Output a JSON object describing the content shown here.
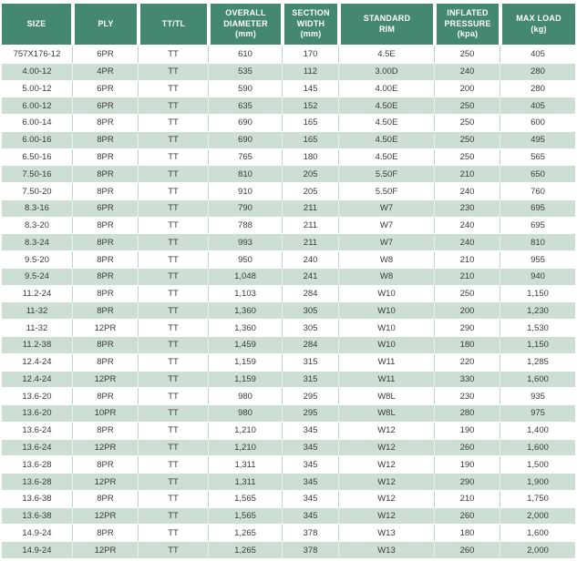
{
  "colors": {
    "header_bg": "#44886f",
    "header_text": "#ffffff",
    "row_white_bg": "#ffffff",
    "row_alt_bg": "#cddfd5",
    "divider_green": "#b9d6c9",
    "body_text": "#3a3a3a"
  },
  "table": {
    "column_keys": [
      "size",
      "ply",
      "tt_tl",
      "overall_diameter",
      "section_width",
      "standard_rim",
      "inflated_pressure",
      "max_load"
    ],
    "columns": [
      {
        "label": "SIZE"
      },
      {
        "label": "PLY"
      },
      {
        "label": "TT/TL"
      },
      {
        "label": "OVERALL\nDIAMETER\n(mm)"
      },
      {
        "label": "SECTION\nWIDTH\n(mm)"
      },
      {
        "label": "STANDARD\nRIM"
      },
      {
        "label": "INFLATED\nPRESSURE\n(kpa)"
      },
      {
        "label": "MAX LOAD\n(kg)"
      }
    ],
    "rows": [
      [
        "757X176-12",
        "6PR",
        "TT",
        "610",
        "170",
        "4.5E",
        "250",
        "405"
      ],
      [
        "4.00-12",
        "4PR",
        "TT",
        "535",
        "112",
        "3.00D",
        "240",
        "280"
      ],
      [
        "5.00-12",
        "6PR",
        "TT",
        "590",
        "145",
        "4.00E",
        "200",
        "280"
      ],
      [
        "6.00-12",
        "6PR",
        "TT",
        "635",
        "152",
        "4.50E",
        "250",
        "405"
      ],
      [
        "6.00-14",
        "8PR",
        "TT",
        "690",
        "165",
        "4.50E",
        "250",
        "600"
      ],
      [
        "6.00-16",
        "8PR",
        "TT",
        "690",
        "165",
        "4.50E",
        "250",
        "495"
      ],
      [
        "6.50-16",
        "8PR",
        "TT",
        "765",
        "180",
        "4.50E",
        "250",
        "565"
      ],
      [
        "7.50-16",
        "8PR",
        "TT",
        "810",
        "205",
        "5.50F",
        "210",
        "650"
      ],
      [
        "7.50-20",
        "8PR",
        "TT",
        "910",
        "205",
        "5.50F",
        "240",
        "760"
      ],
      [
        "8.3-16",
        "6PR",
        "TT",
        "790",
        "211",
        "W7",
        "230",
        "695"
      ],
      [
        "8.3-20",
        "8PR",
        "TT",
        "788",
        "211",
        "W7",
        "240",
        "695"
      ],
      [
        "8.3-24",
        "8PR",
        "TT",
        "993",
        "211",
        "W7",
        "240",
        "810"
      ],
      [
        "9.5-20",
        "8PR",
        "TT",
        "950",
        "240",
        "W8",
        "210",
        "955"
      ],
      [
        "9.5-24",
        "8PR",
        "TT",
        "1,048",
        "241",
        "W8",
        "210",
        "940"
      ],
      [
        "11.2-24",
        "8PR",
        "TT",
        "1,103",
        "284",
        "W10",
        "250",
        "1,150"
      ],
      [
        "11-32",
        "8PR",
        "TT",
        "1,360",
        "305",
        "W10",
        "200",
        "1,230"
      ],
      [
        "11-32",
        "12PR",
        "TT",
        "1,360",
        "305",
        "W10",
        "290",
        "1,530"
      ],
      [
        "11.2-38",
        "8PR",
        "TT",
        "1,459",
        "284",
        "W10",
        "180",
        "1,150"
      ],
      [
        "12.4-24",
        "8PR",
        "TT",
        "1,159",
        "315",
        "W11",
        "220",
        "1,285"
      ],
      [
        "12.4-24",
        "12PR",
        "TT",
        "1,159",
        "315",
        "W11",
        "330",
        "1,600"
      ],
      [
        "13.6-20",
        "8PR",
        "TT",
        "980",
        "295",
        "W8L",
        "230",
        "935"
      ],
      [
        "13.6-20",
        "10PR",
        "TT",
        "980",
        "295",
        "W8L",
        "280",
        "975"
      ],
      [
        "13.6-24",
        "8PR",
        "TT",
        "1,210",
        "345",
        "W12",
        "190",
        "1,400"
      ],
      [
        "13.6-24",
        "12PR",
        "TT",
        "1,210",
        "345",
        "W12",
        "260",
        "1,600"
      ],
      [
        "13.6-28",
        "8PR",
        "TT",
        "1,311",
        "345",
        "W12",
        "190",
        "1,500"
      ],
      [
        "13.6-28",
        "12PR",
        "TT",
        "1,311",
        "345",
        "W12",
        "290",
        "1,900"
      ],
      [
        "13.6-38",
        "8PR",
        "TT",
        "1,565",
        "345",
        "W12",
        "210",
        "1,750"
      ],
      [
        "13.6-38",
        "12PR",
        "TT",
        "1,565",
        "345",
        "W12",
        "260",
        "2,000"
      ],
      [
        "14.9-24",
        "8PR",
        "TT",
        "1,265",
        "378",
        "W13",
        "180",
        "1,600"
      ],
      [
        "14.9-24",
        "12PR",
        "TT",
        "1,265",
        "378",
        "W13",
        "260",
        "2,000"
      ]
    ]
  }
}
